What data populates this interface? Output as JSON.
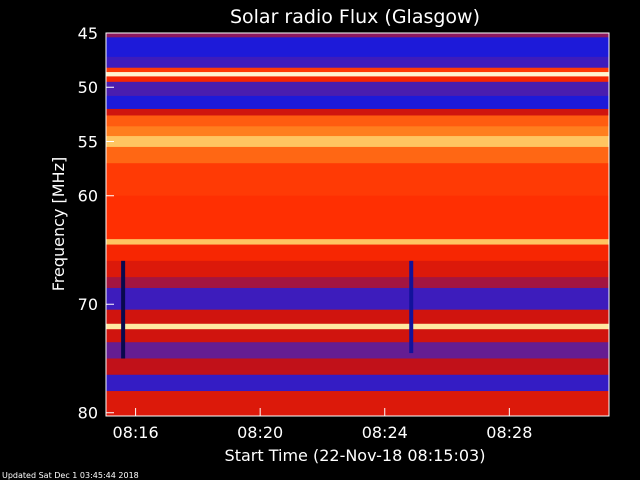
{
  "chart_data": {
    "type": "heatmap",
    "title": "Solar radio Flux (Glasgow)",
    "xlabel": "Start Time (22-Nov-18 08:15:03)",
    "ylabel": "Frequency [MHz]",
    "x_ticks": [
      "08:16",
      "08:20",
      "08:24",
      "08:28"
    ],
    "x_tick_minutes": [
      16,
      20,
      24,
      28
    ],
    "xlim_minutes": [
      15.05,
      31.2
    ],
    "y_ticks": [
      45,
      50,
      55,
      60,
      70,
      80
    ],
    "ylim": [
      45,
      80.3
    ],
    "colormap": [
      "#000000",
      "#1a1adc",
      "#5a1ea0",
      "#c81010",
      "#ff2a00",
      "#ff7a1a",
      "#ffe07a",
      "#ffffff"
    ],
    "intensity_bands": [
      {
        "from": 45.0,
        "to": 45.4,
        "level": 0.35
      },
      {
        "from": 45.4,
        "to": 47.2,
        "level": 0.15
      },
      {
        "from": 47.2,
        "to": 48.2,
        "level": 0.22
      },
      {
        "from": 48.2,
        "to": 48.6,
        "level": 0.6
      },
      {
        "from": 48.6,
        "to": 49.0,
        "level": 0.95
      },
      {
        "from": 49.0,
        "to": 49.5,
        "level": 0.55
      },
      {
        "from": 49.5,
        "to": 50.8,
        "level": 0.25
      },
      {
        "from": 50.8,
        "to": 52.0,
        "level": 0.15
      },
      {
        "from": 52.0,
        "to": 52.6,
        "level": 0.45
      },
      {
        "from": 52.6,
        "to": 53.6,
        "level": 0.66
      },
      {
        "from": 53.6,
        "to": 54.5,
        "level": 0.72
      },
      {
        "from": 54.5,
        "to": 55.5,
        "level": 0.82
      },
      {
        "from": 55.5,
        "to": 57.0,
        "level": 0.68
      },
      {
        "from": 57.0,
        "to": 60.0,
        "level": 0.6
      },
      {
        "from": 60.0,
        "to": 64.0,
        "level": 0.58
      },
      {
        "from": 64.0,
        "to": 64.5,
        "level": 0.82
      },
      {
        "from": 64.5,
        "to": 66.0,
        "level": 0.55
      },
      {
        "from": 66.0,
        "to": 67.5,
        "level": 0.48
      },
      {
        "from": 67.5,
        "to": 68.5,
        "level": 0.38
      },
      {
        "from": 68.5,
        "to": 70.5,
        "level": 0.22
      },
      {
        "from": 70.5,
        "to": 71.8,
        "level": 0.45
      },
      {
        "from": 71.8,
        "to": 72.3,
        "level": 0.9
      },
      {
        "from": 72.3,
        "to": 73.5,
        "level": 0.45
      },
      {
        "from": 73.5,
        "to": 75.0,
        "level": 0.3
      },
      {
        "from": 75.0,
        "to": 76.5,
        "level": 0.42
      },
      {
        "from": 76.5,
        "to": 78.0,
        "level": 0.2
      },
      {
        "from": 78.0,
        "to": 80.3,
        "level": 0.48
      }
    ],
    "bursts": [
      {
        "minute": 15.6,
        "from": 66.0,
        "to": 75.0,
        "level": 0.05
      },
      {
        "minute": 24.85,
        "from": 66.0,
        "to": 74.5,
        "level": 0.1
      }
    ]
  },
  "footer": {
    "updated": "Updated Sat Dec  1 03:45:44 2018"
  }
}
